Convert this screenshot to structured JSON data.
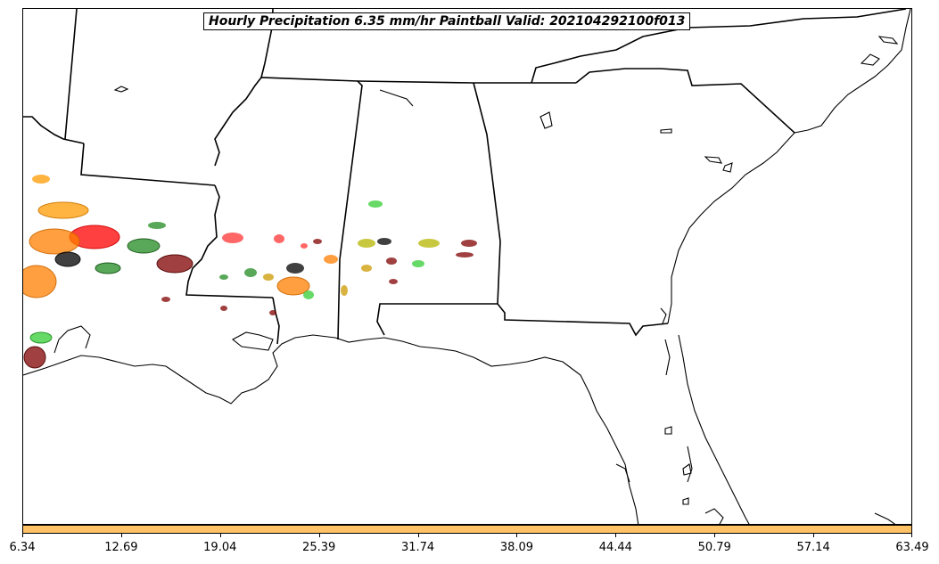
{
  "title": "Hourly Precipitation 6.35 mm/hr Paintball Valid: 202104292100f013",
  "colorbar": {
    "color": "#ffc266",
    "ticks": [
      "6.34",
      "12.69",
      "19.04",
      "25.39",
      "31.74",
      "38.09",
      "44.44",
      "50.79",
      "57.14",
      "63.49"
    ]
  },
  "member_colors": [
    "#ff0000",
    "#ff7f00",
    "#cc9900",
    "#b5b500",
    "#33cc33",
    "#228b22",
    "#800000",
    "#000000",
    "#ff3333"
  ]
}
